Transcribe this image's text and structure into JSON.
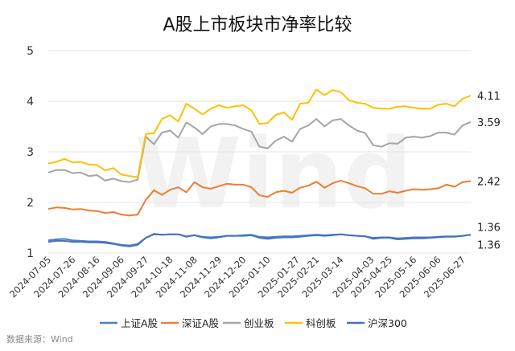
{
  "chart_data": {
    "type": "line",
    "title": "A股上市板块市净率比较",
    "source": "数据来源：Wind",
    "watermark": "Wind",
    "ylim": [
      1,
      5
    ],
    "yticks": [
      "1",
      "2",
      "3",
      "4",
      "5"
    ],
    "grid": true,
    "legend_position": "bottom",
    "x": [
      "2024-07-05",
      "2024-07-12",
      "2024-07-19",
      "2024-07-26",
      "2024-08-02",
      "2024-08-09",
      "2024-08-16",
      "2024-08-23",
      "2024-08-30",
      "2024-09-06",
      "2024-09-13",
      "2024-09-20",
      "2024-09-27",
      "2024-10-04",
      "2024-10-11",
      "2024-10-18",
      "2024-10-25",
      "2024-11-01",
      "2024-11-08",
      "2024-11-15",
      "2024-11-22",
      "2024-11-29",
      "2024-12-06",
      "2024-12-13",
      "2024-12-20",
      "2024-12-27",
      "2025-01-03",
      "2025-01-10",
      "2025-01-17",
      "2025-01-24",
      "2025-01-31",
      "2025-02-07",
      "2025-02-14",
      "2025-02-21",
      "2025-02-28",
      "2025-03-07",
      "2025-03-14",
      "2025-03-21",
      "2025-03-28",
      "2025-04-04",
      "2025-04-11",
      "2025-04-18",
      "2025-04-25",
      "2025-05-02",
      "2025-05-09",
      "2025-05-16",
      "2025-05-23",
      "2025-05-30",
      "2025-06-06",
      "2025-06-13",
      "2025-06-20",
      "2025-06-27",
      "2025-07-04"
    ],
    "xticks": [
      "2024-07-05",
      "2024-07-26",
      "2024-08-16",
      "2024-09-06",
      "2024-09-27",
      "2024-10-18",
      "2024-11-08",
      "2024-11-29",
      "2024-12-20",
      "2025-01-10",
      "2025-01-27",
      "2025-02-21",
      "2025-03-14",
      "2025-04-03",
      "2025-04-25",
      "2025-05-16",
      "2025-06-06",
      "2025-06-27"
    ],
    "series": [
      {
        "name": "上证A股",
        "color": "#4a7fc9",
        "end_label": "1.36",
        "values": [
          1.25,
          1.27,
          1.28,
          1.25,
          1.24,
          1.23,
          1.23,
          1.22,
          1.19,
          1.16,
          1.15,
          1.18,
          1.3,
          1.38,
          1.36,
          1.37,
          1.37,
          1.33,
          1.35,
          1.32,
          1.31,
          1.32,
          1.34,
          1.34,
          1.35,
          1.36,
          1.32,
          1.31,
          1.32,
          1.33,
          1.33,
          1.34,
          1.35,
          1.36,
          1.35,
          1.36,
          1.37,
          1.35,
          1.34,
          1.33,
          1.3,
          1.31,
          1.31,
          1.29,
          1.3,
          1.31,
          1.31,
          1.31,
          1.32,
          1.33,
          1.33,
          1.34,
          1.36
        ]
      },
      {
        "name": "深证A股",
        "color": "#ed7d31",
        "end_label": "2.42",
        "values": [
          1.87,
          1.9,
          1.89,
          1.86,
          1.87,
          1.84,
          1.83,
          1.79,
          1.81,
          1.76,
          1.74,
          1.76,
          2.05,
          2.24,
          2.15,
          2.25,
          2.3,
          2.2,
          2.4,
          2.3,
          2.27,
          2.32,
          2.37,
          2.35,
          2.35,
          2.3,
          2.14,
          2.11,
          2.2,
          2.23,
          2.19,
          2.29,
          2.33,
          2.41,
          2.29,
          2.38,
          2.43,
          2.38,
          2.32,
          2.28,
          2.17,
          2.17,
          2.22,
          2.19,
          2.23,
          2.26,
          2.25,
          2.26,
          2.28,
          2.35,
          2.31,
          2.4,
          2.42
        ]
      },
      {
        "name": "创业板",
        "color": "#a5a5a5",
        "end_label": "3.59",
        "values": [
          2.59,
          2.64,
          2.64,
          2.58,
          2.59,
          2.52,
          2.54,
          2.43,
          2.47,
          2.42,
          2.4,
          2.45,
          3.3,
          3.15,
          3.38,
          3.42,
          3.28,
          3.58,
          3.48,
          3.35,
          3.5,
          3.55,
          3.55,
          3.52,
          3.45,
          3.4,
          3.1,
          3.07,
          3.22,
          3.3,
          3.2,
          3.45,
          3.52,
          3.65,
          3.5,
          3.62,
          3.65,
          3.52,
          3.42,
          3.37,
          3.13,
          3.1,
          3.17,
          3.16,
          3.28,
          3.3,
          3.28,
          3.31,
          3.38,
          3.38,
          3.34,
          3.52,
          3.59
        ]
      },
      {
        "name": "科创板",
        "color": "#ffc000",
        "end_label": "4.11",
        "values": [
          2.77,
          2.8,
          2.86,
          2.79,
          2.8,
          2.75,
          2.74,
          2.63,
          2.68,
          2.55,
          2.52,
          2.5,
          3.35,
          3.37,
          3.65,
          3.72,
          3.6,
          3.95,
          3.85,
          3.74,
          3.85,
          3.92,
          3.87,
          3.9,
          3.92,
          3.82,
          3.55,
          3.57,
          3.73,
          3.78,
          3.63,
          3.95,
          3.97,
          4.23,
          4.12,
          4.22,
          4.18,
          4.02,
          3.97,
          3.95,
          3.87,
          3.85,
          3.85,
          3.89,
          3.9,
          3.87,
          3.85,
          3.85,
          3.93,
          3.95,
          3.9,
          4.05,
          4.11
        ]
      },
      {
        "name": "沪深300",
        "color": "#4472c4",
        "end_label": "1.36",
        "values": [
          1.22,
          1.24,
          1.24,
          1.22,
          1.22,
          1.21,
          1.21,
          1.2,
          1.18,
          1.15,
          1.13,
          1.16,
          1.3,
          1.37,
          1.36,
          1.37,
          1.37,
          1.32,
          1.35,
          1.31,
          1.29,
          1.31,
          1.34,
          1.34,
          1.34,
          1.35,
          1.3,
          1.28,
          1.3,
          1.31,
          1.31,
          1.32,
          1.34,
          1.35,
          1.34,
          1.35,
          1.37,
          1.35,
          1.34,
          1.33,
          1.28,
          1.3,
          1.3,
          1.27,
          1.28,
          1.29,
          1.29,
          1.3,
          1.31,
          1.32,
          1.32,
          1.34,
          1.36
        ]
      }
    ]
  }
}
